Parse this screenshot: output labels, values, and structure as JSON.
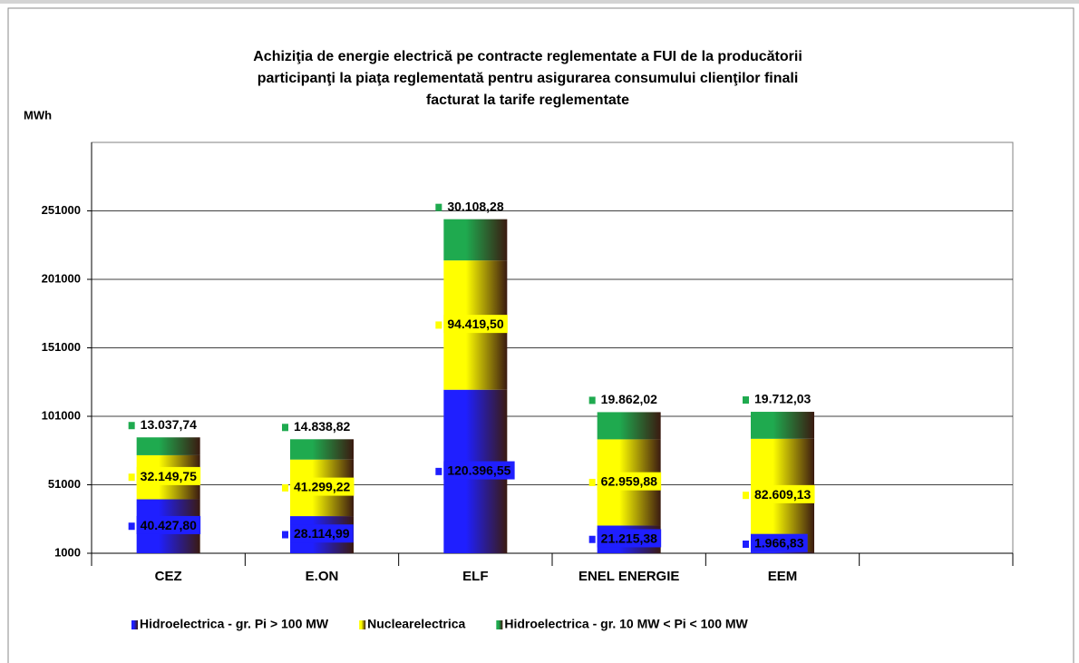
{
  "chart_data": {
    "type": "stacked_bar",
    "title": [
      "Achiziţia de energie electrică pe contracte reglementate a FUI de la  producătorii",
      "participanţi la piaţa reglementată pentru asigurarea consumului clienţilor  finali",
      "facturat la tarife reglementate"
    ],
    "y_label": "MWh",
    "categories": [
      "CEZ",
      "E.ON",
      "ELF",
      "ENEL ENERGIE",
      "EEM",
      null
    ],
    "series": [
      {
        "name": "Hidroelectrica - gr. Pi > 100 MW",
        "color": "#1f1fff",
        "label_style": "box",
        "values": [
          40427.8,
          28114.99,
          120396.55,
          21215.38,
          1966.83,
          null
        ],
        "value_labels": [
          "40.427,80",
          "28.114,99",
          "120.396,55",
          "21.215,38",
          "1.966,83",
          null
        ]
      },
      {
        "name": "Nuclearelectrica",
        "color": "#ffff00",
        "label_style": "box",
        "values": [
          32149.75,
          41299.22,
          94419.5,
          62959.88,
          82609.13,
          null
        ],
        "value_labels": [
          "32.149,75",
          "41.299,22",
          "94.419,50",
          "62.959,88",
          "82.609,13",
          null
        ]
      },
      {
        "name": "Hidroelectrica - gr. 10 MW < Pi < 100 MW",
        "color": "#1faa4f",
        "label_style": "plain",
        "values": [
          13037.74,
          14838.82,
          30108.28,
          19862.02,
          19712.03,
          null
        ],
        "value_labels": [
          "13.037,74",
          "14.838,82",
          "30.108,28",
          "19.862,02",
          "19.712,03",
          null
        ]
      }
    ],
    "ylim": [
      1000,
      301000
    ],
    "yticks": [
      1000,
      51000,
      101000,
      151000,
      201000,
      251000
    ],
    "grid": true,
    "legend": "bottom"
  }
}
